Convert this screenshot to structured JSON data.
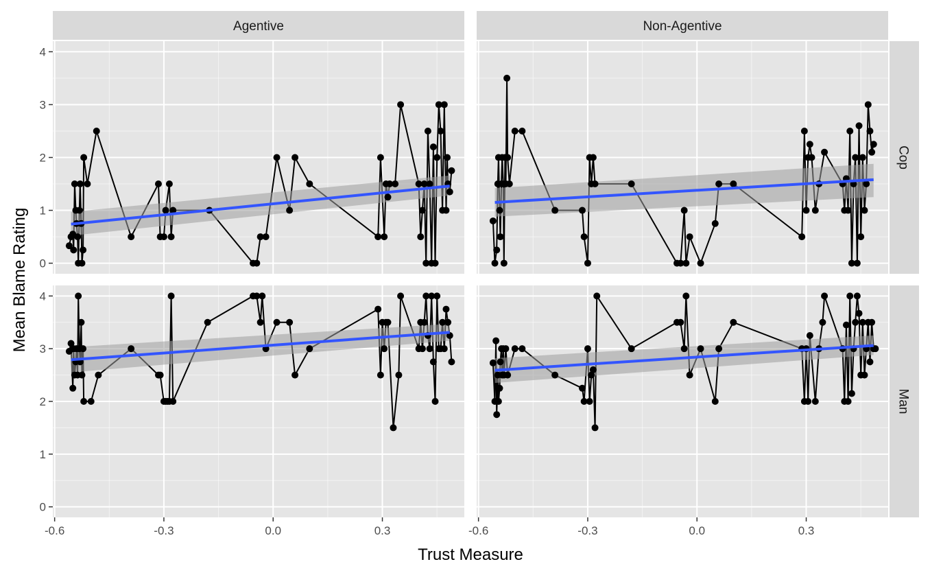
{
  "chart_data": {
    "type": "scatter",
    "xlabel": "Trust Measure",
    "ylabel": "Mean Blame Rating",
    "xlim": [
      -0.605,
      0.525
    ],
    "ylim": [
      -0.2,
      4.2
    ],
    "x_ticks": [
      -0.6,
      -0.3,
      0.0,
      0.3
    ],
    "x_tick_labels": [
      "-0.6",
      "-0.3",
      "0.0",
      "0.3"
    ],
    "y_ticks": [
      0,
      1,
      2,
      3,
      4
    ],
    "y_tick_labels": [
      "0",
      "1",
      "2",
      "3",
      "4"
    ],
    "facet_cols": [
      "Agentive",
      "Non-Agentive"
    ],
    "facet_rows": [
      "Cop",
      "Man"
    ],
    "grid": true,
    "legend": "none",
    "colors": {
      "panel_bg": "#e5e5e5",
      "strip_bg": "#d9d9d9",
      "grid": "#ffffff",
      "points": "#000000",
      "fit_line": "#3355ff",
      "confidence_band": "#9e9e9e"
    },
    "panels": [
      {
        "col": "Agentive",
        "row": "Cop",
        "points": [
          [
            -0.56,
            0.33
          ],
          [
            -0.555,
            0.5
          ],
          [
            -0.55,
            0.55
          ],
          [
            -0.548,
            0.25
          ],
          [
            -0.545,
            1.5
          ],
          [
            -0.542,
            1.0
          ],
          [
            -0.54,
            0.75
          ],
          [
            -0.537,
            0.5
          ],
          [
            -0.535,
            0.0
          ],
          [
            -0.532,
            1.0
          ],
          [
            -0.53,
            1.5
          ],
          [
            -0.527,
            0.75
          ],
          [
            -0.525,
            0.0
          ],
          [
            -0.522,
            0.25
          ],
          [
            -0.52,
            2.0
          ],
          [
            -0.51,
            1.5
          ],
          [
            -0.485,
            2.5
          ],
          [
            -0.39,
            0.5
          ],
          [
            -0.315,
            1.5
          ],
          [
            -0.31,
            0.5
          ],
          [
            -0.3,
            0.5
          ],
          [
            -0.295,
            1.0
          ],
          [
            -0.285,
            1.5
          ],
          [
            -0.28,
            0.5
          ],
          [
            -0.275,
            1.0
          ],
          [
            -0.175,
            1.0
          ],
          [
            -0.055,
            0.0
          ],
          [
            -0.045,
            0.0
          ],
          [
            -0.035,
            0.5
          ],
          [
            -0.02,
            0.5
          ],
          [
            0.01,
            2.0
          ],
          [
            0.045,
            1.0
          ],
          [
            0.06,
            2.0
          ],
          [
            0.1,
            1.5
          ],
          [
            0.288,
            0.5
          ],
          [
            0.295,
            2.0
          ],
          [
            0.305,
            0.5
          ],
          [
            0.31,
            1.5
          ],
          [
            0.315,
            1.25
          ],
          [
            0.32,
            1.5
          ],
          [
            0.335,
            1.5
          ],
          [
            0.35,
            3.0
          ],
          [
            0.4,
            1.5
          ],
          [
            0.405,
            0.5
          ],
          [
            0.41,
            1.0
          ],
          [
            0.415,
            1.5
          ],
          [
            0.42,
            0.0
          ],
          [
            0.425,
            2.5
          ],
          [
            0.43,
            1.5
          ],
          [
            0.435,
            0.0
          ],
          [
            0.44,
            2.2
          ],
          [
            0.445,
            0.0
          ],
          [
            0.45,
            2.0
          ],
          [
            0.455,
            3.0
          ],
          [
            0.46,
            2.5
          ],
          [
            0.465,
            1.0
          ],
          [
            0.47,
            3.0
          ],
          [
            0.475,
            1.0
          ],
          [
            0.478,
            2.0
          ],
          [
            0.48,
            1.5
          ],
          [
            0.485,
            1.35
          ],
          [
            0.49,
            1.75
          ]
        ],
        "fit": {
          "x": [
            -0.555,
            0.485
          ],
          "y": [
            0.74,
            1.46
          ]
        },
        "band_start": [
          0.52,
          0.97
        ],
        "band_end": [
          1.28,
          1.66
        ]
      },
      {
        "col": "Non-Agentive",
        "row": "Cop",
        "points": [
          [
            -0.56,
            0.8
          ],
          [
            -0.555,
            0.0
          ],
          [
            -0.55,
            0.25
          ],
          [
            -0.547,
            1.5
          ],
          [
            -0.545,
            2.0
          ],
          [
            -0.542,
            1.0
          ],
          [
            -0.54,
            0.5
          ],
          [
            -0.537,
            1.5
          ],
          [
            -0.535,
            2.0
          ],
          [
            -0.532,
            1.5
          ],
          [
            -0.53,
            0.0
          ],
          [
            -0.527,
            2.0
          ],
          [
            -0.525,
            1.5
          ],
          [
            -0.522,
            3.5
          ],
          [
            -0.52,
            2.0
          ],
          [
            -0.515,
            1.5
          ],
          [
            -0.5,
            2.5
          ],
          [
            -0.48,
            2.5
          ],
          [
            -0.39,
            1.0
          ],
          [
            -0.315,
            1.0
          ],
          [
            -0.31,
            0.5
          ],
          [
            -0.3,
            0.0
          ],
          [
            -0.295,
            2.0
          ],
          [
            -0.29,
            1.5
          ],
          [
            -0.285,
            2.0
          ],
          [
            -0.28,
            1.5
          ],
          [
            -0.18,
            1.5
          ],
          [
            -0.055,
            0.0
          ],
          [
            -0.045,
            0.0
          ],
          [
            -0.035,
            1.0
          ],
          [
            -0.03,
            0.0
          ],
          [
            -0.02,
            0.5
          ],
          [
            0.01,
            0.0
          ],
          [
            0.05,
            0.75
          ],
          [
            0.06,
            1.5
          ],
          [
            0.1,
            1.5
          ],
          [
            0.288,
            0.5
          ],
          [
            0.295,
            2.5
          ],
          [
            0.3,
            1.0
          ],
          [
            0.305,
            2.0
          ],
          [
            0.31,
            2.25
          ],
          [
            0.315,
            2.0
          ],
          [
            0.325,
            1.0
          ],
          [
            0.335,
            1.5
          ],
          [
            0.35,
            2.1
          ],
          [
            0.4,
            1.5
          ],
          [
            0.405,
            1.0
          ],
          [
            0.41,
            1.6
          ],
          [
            0.415,
            1.0
          ],
          [
            0.42,
            2.5
          ],
          [
            0.425,
            0.0
          ],
          [
            0.43,
            1.5
          ],
          [
            0.435,
            2.0
          ],
          [
            0.44,
            0.0
          ],
          [
            0.445,
            2.6
          ],
          [
            0.45,
            0.5
          ],
          [
            0.455,
            2.0
          ],
          [
            0.46,
            1.0
          ],
          [
            0.465,
            1.5
          ],
          [
            0.47,
            3.0
          ],
          [
            0.475,
            2.5
          ],
          [
            0.48,
            2.1
          ],
          [
            0.485,
            2.25
          ]
        ],
        "fit": {
          "x": [
            -0.555,
            0.485
          ],
          "y": [
            1.15,
            1.58
          ]
        },
        "band_start": [
          0.88,
          1.42
        ],
        "band_end": [
          1.25,
          1.88
        ]
      },
      {
        "col": "Agentive",
        "row": "Man",
        "points": [
          [
            -0.56,
            2.95
          ],
          [
            -0.555,
            3.1
          ],
          [
            -0.55,
            2.25
          ],
          [
            -0.548,
            3.0
          ],
          [
            -0.545,
            2.5
          ],
          [
            -0.542,
            2.75
          ],
          [
            -0.54,
            3.0
          ],
          [
            -0.537,
            2.5
          ],
          [
            -0.535,
            4.0
          ],
          [
            -0.532,
            3.0
          ],
          [
            -0.53,
            2.75
          ],
          [
            -0.527,
            3.5
          ],
          [
            -0.525,
            2.5
          ],
          [
            -0.522,
            3.0
          ],
          [
            -0.52,
            2.0
          ],
          [
            -0.5,
            2.0
          ],
          [
            -0.48,
            2.5
          ],
          [
            -0.39,
            3.0
          ],
          [
            -0.315,
            2.5
          ],
          [
            -0.31,
            2.5
          ],
          [
            -0.3,
            2.0
          ],
          [
            -0.295,
            2.0
          ],
          [
            -0.29,
            2.0
          ],
          [
            -0.285,
            2.0
          ],
          [
            -0.28,
            4.0
          ],
          [
            -0.275,
            2.0
          ],
          [
            -0.18,
            3.5
          ],
          [
            -0.055,
            4.0
          ],
          [
            -0.045,
            4.0
          ],
          [
            -0.035,
            3.5
          ],
          [
            -0.03,
            4.0
          ],
          [
            -0.02,
            3.0
          ],
          [
            0.01,
            3.5
          ],
          [
            0.045,
            3.5
          ],
          [
            0.06,
            2.5
          ],
          [
            0.1,
            3.0
          ],
          [
            0.288,
            3.75
          ],
          [
            0.295,
            2.5
          ],
          [
            0.3,
            3.5
          ],
          [
            0.305,
            3.0
          ],
          [
            0.31,
            3.5
          ],
          [
            0.315,
            3.5
          ],
          [
            0.33,
            1.5
          ],
          [
            0.345,
            2.5
          ],
          [
            0.35,
            4.0
          ],
          [
            0.4,
            3.0
          ],
          [
            0.405,
            3.5
          ],
          [
            0.41,
            3.0
          ],
          [
            0.415,
            3.5
          ],
          [
            0.42,
            4.0
          ],
          [
            0.425,
            3.25
          ],
          [
            0.43,
            3.0
          ],
          [
            0.435,
            4.0
          ],
          [
            0.44,
            2.75
          ],
          [
            0.445,
            2.0
          ],
          [
            0.45,
            4.0
          ],
          [
            0.455,
            3.0
          ],
          [
            0.46,
            3.0
          ],
          [
            0.465,
            3.5
          ],
          [
            0.47,
            3.0
          ],
          [
            0.475,
            3.75
          ],
          [
            0.48,
            3.5
          ],
          [
            0.485,
            3.25
          ],
          [
            0.49,
            2.75
          ]
        ],
        "fit": {
          "x": [
            -0.555,
            0.485
          ],
          "y": [
            2.79,
            3.31
          ]
        },
        "band_start": [
          2.55,
          3.03
        ],
        "band_end": [
          3.15,
          3.47
        ]
      },
      {
        "col": "Non-Agentive",
        "row": "Man",
        "points": [
          [
            -0.56,
            2.73
          ],
          [
            -0.555,
            2.0
          ],
          [
            -0.552,
            3.15
          ],
          [
            -0.55,
            1.75
          ],
          [
            -0.547,
            2.5
          ],
          [
            -0.545,
            2.0
          ],
          [
            -0.542,
            2.25
          ],
          [
            -0.54,
            2.75
          ],
          [
            -0.537,
            3.0
          ],
          [
            -0.535,
            2.5
          ],
          [
            -0.532,
            3.0
          ],
          [
            -0.53,
            2.5
          ],
          [
            -0.525,
            3.0
          ],
          [
            -0.52,
            2.5
          ],
          [
            -0.5,
            3.0
          ],
          [
            -0.48,
            3.0
          ],
          [
            -0.39,
            2.5
          ],
          [
            -0.315,
            2.25
          ],
          [
            -0.31,
            2.0
          ],
          [
            -0.3,
            3.0
          ],
          [
            -0.295,
            2.0
          ],
          [
            -0.29,
            2.5
          ],
          [
            -0.285,
            2.6
          ],
          [
            -0.28,
            1.5
          ],
          [
            -0.275,
            4.0
          ],
          [
            -0.18,
            3.0
          ],
          [
            -0.055,
            3.5
          ],
          [
            -0.045,
            3.5
          ],
          [
            -0.035,
            3.0
          ],
          [
            -0.03,
            4.0
          ],
          [
            -0.02,
            2.5
          ],
          [
            0.01,
            3.0
          ],
          [
            0.05,
            2.0
          ],
          [
            0.06,
            3.0
          ],
          [
            0.1,
            3.5
          ],
          [
            0.288,
            3.0
          ],
          [
            0.295,
            2.0
          ],
          [
            0.3,
            3.0
          ],
          [
            0.305,
            2.0
          ],
          [
            0.31,
            3.25
          ],
          [
            0.325,
            2.0
          ],
          [
            0.335,
            3.0
          ],
          [
            0.345,
            3.5
          ],
          [
            0.35,
            4.0
          ],
          [
            0.4,
            3.0
          ],
          [
            0.405,
            2.0
          ],
          [
            0.41,
            3.45
          ],
          [
            0.415,
            2.0
          ],
          [
            0.42,
            4.0
          ],
          [
            0.425,
            2.15
          ],
          [
            0.43,
            3.0
          ],
          [
            0.435,
            3.5
          ],
          [
            0.44,
            4.0
          ],
          [
            0.445,
            3.67
          ],
          [
            0.45,
            2.5
          ],
          [
            0.455,
            3.5
          ],
          [
            0.46,
            2.5
          ],
          [
            0.465,
            3.0
          ],
          [
            0.47,
            3.5
          ],
          [
            0.475,
            2.75
          ],
          [
            0.48,
            3.5
          ],
          [
            0.485,
            3.0
          ],
          [
            0.49,
            3.0
          ]
        ],
        "fit": {
          "x": [
            -0.555,
            0.485
          ],
          "y": [
            2.59,
            3.06
          ]
        },
        "band_start": [
          2.35,
          2.82
        ],
        "band_end": [
          2.88,
          3.25
        ]
      }
    ]
  }
}
